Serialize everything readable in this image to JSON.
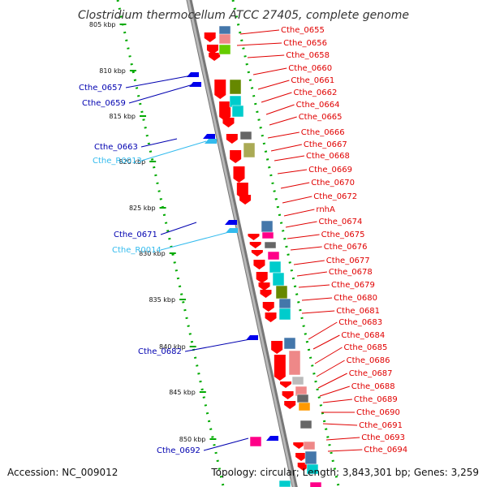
{
  "title": "Clostridium thermocellum ATCC 27405, complete genome",
  "accession_label": "Accession: NC_009012",
  "summary_label": "Topology: circular; Length: 3,843,301 bp; Genes: 3,259",
  "ruler": [
    "805 kbp",
    "810 kbp",
    "815 kbp",
    "820 kbp",
    "825 kbp",
    "830 kbp",
    "835 kbp",
    "840 kbp",
    "845 kbp",
    "850 kbp"
  ],
  "genes_right": [
    "Cthe_0655",
    "Cthe_0656",
    "Cthe_0658",
    "Cthe_0660",
    "Cthe_0661",
    "Cthe_0662",
    "Cthe_0664",
    "Cthe_0665",
    "Cthe_0666",
    "Cthe_0667",
    "Cthe_0668",
    "Cthe_0669",
    "Cthe_0670",
    "Cthe_0672",
    "rnhA",
    "Cthe_0674",
    "Cthe_0675",
    "Cthe_0676",
    "Cthe_0677",
    "Cthe_0678",
    "Cthe_0679",
    "Cthe_0680",
    "Cthe_0681",
    "Cthe_0683",
    "Cthe_0684",
    "Cthe_0685",
    "Cthe_0686",
    "Cthe_0687",
    "Cthe_0688",
    "Cthe_0689",
    "Cthe_0690",
    "Cthe_0691",
    "Cthe_0693",
    "Cthe_0694"
  ],
  "genes_left": [
    "Cthe_0657",
    "Cthe_0659",
    "Cthe_0663",
    "Cthe_0671",
    "Cthe_0682",
    "Cthe_0692"
  ],
  "rna_left": [
    "Cthe_R0013",
    "Cthe_R0014"
  ],
  "colors": {
    "forward_gene": "#ff0000",
    "reverse_gene": "#0000ee",
    "rna": "#33bbee",
    "ruler_tick": "#00aa00",
    "backbone": "#999999",
    "right_label": "#e00000",
    "left_label": "#0000b0",
    "cog_boxes": [
      "#4477aa",
      "#ee8888",
      "#66cc00",
      "#668800",
      "#00cccc",
      "#666666",
      "#aaaa55",
      "#ff0088",
      "#ff9900",
      "#bbbbbb"
    ]
  }
}
